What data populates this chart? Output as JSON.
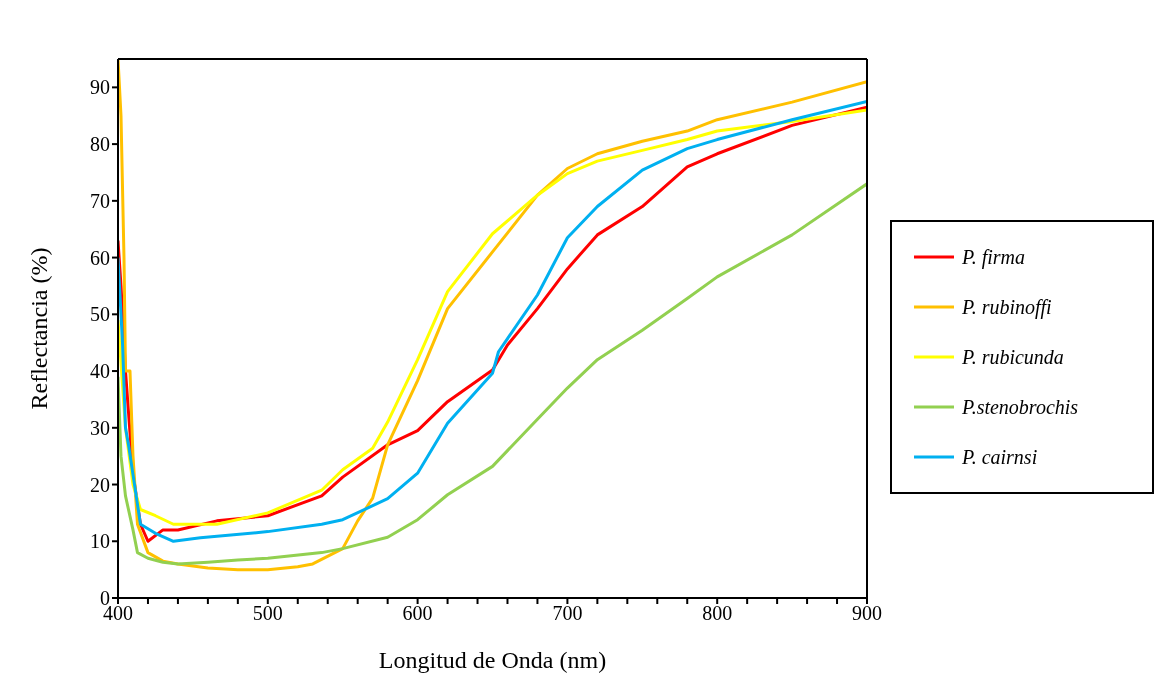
{
  "chart_data": {
    "type": "line",
    "xlabel": "Longitud de Onda (nm)",
    "ylabel": "Reflectancia (%)",
    "xlim": [
      400,
      900
    ],
    "ylim": [
      0,
      95
    ],
    "xticks": [
      400,
      {
        "value": 420,
        "label": null
      },
      {
        "value": 440,
        "label": null
      },
      {
        "value": 460,
        "label": null
      },
      {
        "value": 480,
        "label": null
      },
      500,
      {
        "value": 520,
        "label": null
      },
      {
        "value": 540,
        "label": null
      },
      {
        "value": 560,
        "label": null
      },
      {
        "value": 580,
        "label": null
      },
      600,
      {
        "value": 620,
        "label": null
      },
      {
        "value": 640,
        "label": null
      },
      {
        "value": 660,
        "label": null
      },
      {
        "value": 680,
        "label": null
      },
      700,
      {
        "value": 720,
        "label": null
      },
      {
        "value": 740,
        "label": null
      },
      {
        "value": 760,
        "label": null
      },
      {
        "value": 780,
        "label": null
      },
      800,
      {
        "value": 820,
        "label": null
      },
      {
        "value": 840,
        "label": null
      },
      {
        "value": 860,
        "label": null
      },
      {
        "value": 880,
        "label": null
      },
      900
    ],
    "yticks": [
      0,
      10,
      20,
      30,
      40,
      50,
      60,
      70,
      80,
      90
    ],
    "grid": false,
    "legend": "right",
    "marker": "none",
    "line_style": "solid",
    "series": [
      {
        "name": "P. firma",
        "color": "#ff0000",
        "x": [
          400,
          402,
          405,
          410,
          415,
          420,
          430,
          440,
          466,
          500,
          536,
          550,
          580,
          600,
          620,
          650,
          660,
          680,
          700,
          720,
          750,
          780,
          800,
          850,
          900
        ],
        "values": [
          63,
          55,
          40,
          22,
          13,
          10,
          12,
          12,
          13.6,
          14.5,
          18,
          21.3,
          27,
          29.5,
          34.6,
          40.2,
          44.6,
          51,
          58,
          64,
          69,
          76,
          78.3,
          83.3,
          86.5
        ]
      },
      {
        "name": "P. rubinoffi",
        "color": "#ffc000",
        "x": [
          400,
          402,
          404,
          405,
          408,
          410,
          413,
          420,
          430,
          440,
          460,
          480,
          500,
          520,
          530,
          550,
          560,
          570,
          580,
          600,
          620,
          650,
          680,
          700,
          720,
          750,
          780,
          800,
          850,
          900
        ],
        "values": [
          95,
          85,
          60,
          40,
          40,
          25,
          13,
          8,
          6.5,
          6,
          5.3,
          5,
          5,
          5.5,
          6,
          8.7,
          13.6,
          17.6,
          27,
          38.3,
          51,
          61,
          71,
          75.7,
          78.3,
          80.5,
          82.3,
          84.3,
          87.4,
          91
        ]
      },
      {
        "name": "P. rubicunda",
        "color": "#ffff00",
        "x": [
          400,
          405,
          410,
          415,
          425,
          437,
          466,
          500,
          536,
          550,
          570,
          580,
          600,
          620,
          650,
          680,
          700,
          720,
          750,
          780,
          800,
          850,
          900
        ],
        "values": [
          49,
          30,
          20,
          15.6,
          14.5,
          13,
          13,
          15,
          19,
          22.6,
          26.4,
          31,
          42,
          54,
          64.2,
          71,
          74.8,
          77,
          78.9,
          80.8,
          82.3,
          84,
          86
        ]
      },
      {
        "name": "P.stenobrochis",
        "color": "#92d050",
        "x": [
          400,
          402,
          405,
          410,
          413,
          420,
          430,
          440,
          460,
          480,
          500,
          536,
          550,
          580,
          600,
          620,
          650,
          680,
          700,
          720,
          750,
          780,
          800,
          850,
          900
        ],
        "values": [
          39,
          25,
          18,
          12,
          8,
          7,
          6.3,
          6,
          6.3,
          6.7,
          7,
          8,
          8.7,
          10.7,
          13.8,
          18.2,
          23.2,
          31.5,
          37,
          42,
          47.2,
          52.8,
          56.6,
          64,
          73
        ]
      },
      {
        "name": "P. cairnsi",
        "color": "#00b0f0",
        "x": [
          400,
          403,
          405,
          407,
          415,
          425,
          437,
          455,
          500,
          536,
          550,
          580,
          600,
          620,
          650,
          654,
          680,
          700,
          720,
          750,
          780,
          800,
          850,
          900
        ],
        "values": [
          60,
          45,
          30,
          27,
          13,
          11.4,
          10,
          10.6,
          11.7,
          13,
          13.8,
          17.5,
          22,
          30.8,
          39.6,
          43.4,
          53.4,
          63.5,
          69,
          75.4,
          79.2,
          80.8,
          84.3,
          87.5
        ]
      }
    ]
  }
}
